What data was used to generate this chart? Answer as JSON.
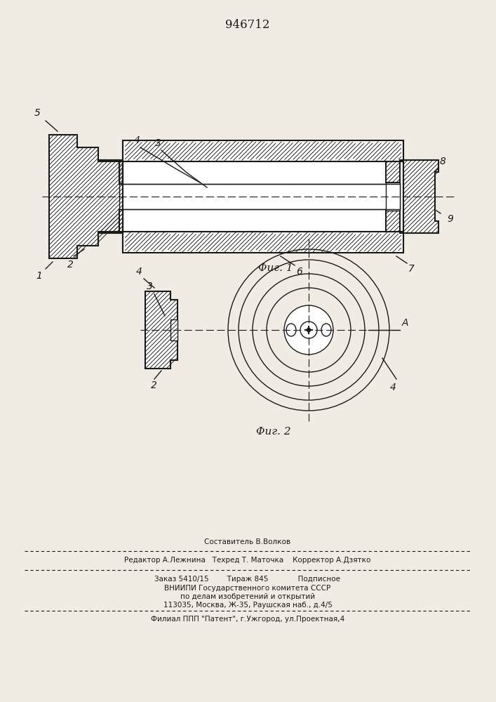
{
  "title": "946712",
  "fig1_label": "Φиг. 1",
  "fig2_label": "Φиг. 2",
  "bg_color": "#f0ece4",
  "line_color": "#1a1a1a",
  "hatch_color": "#1a1a1a",
  "footnote_line1": "Составитель В.Волков",
  "footnote_line2": "Редактор А.Лежнина   Техред Т. Маточка    Корректор А.Дзятко",
  "footnote_line3": "Заказ 5410/15        Тираж 845             Подписное",
  "footnote_line4": "ВНИИПИ Государственного комитета СССР",
  "footnote_line5": "по делам изобретений и открытий",
  "footnote_line6": "113035, Москва, Ж-35, Раушская наб., д.4/5",
  "footnote_line7": "Филиал ППП \"Патент\", г.Ужгород, ул.Проектная,4"
}
